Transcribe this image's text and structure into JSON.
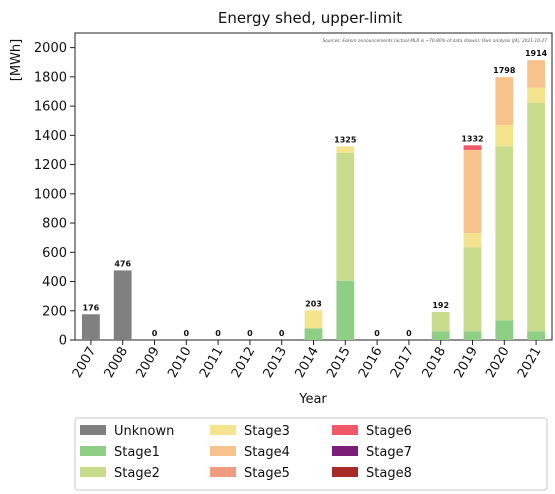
{
  "chart_data": {
    "type": "bar",
    "stacked": true,
    "title": "Energy shed, upper-limit",
    "source_note": "Sources: Eskom announcements (actual MLR is ~70-80% of data shown); Own analysis (JA); 2021-10-27",
    "xlabel": "Year",
    "ylabel": "[MWh]",
    "ylim": [
      0,
      2100
    ],
    "yticks": [
      0,
      200,
      400,
      600,
      800,
      1000,
      1200,
      1400,
      1600,
      1800,
      2000
    ],
    "grid": false,
    "legend_position": "bottom",
    "categories": [
      "2007",
      "2008",
      "2009",
      "2010",
      "2011",
      "2012",
      "2013",
      "2014",
      "2015",
      "2016",
      "2017",
      "2018",
      "2019",
      "2020",
      "2021"
    ],
    "totals": [
      176,
      476,
      0,
      0,
      0,
      0,
      0,
      203,
      1325,
      0,
      0,
      192,
      1332,
      1798,
      1914
    ],
    "series": [
      {
        "name": "Unknown",
        "color": "#808080",
        "values": [
          176,
          476,
          0,
          0,
          0,
          0,
          0,
          0,
          0,
          0,
          0,
          0,
          0,
          0,
          0
        ]
      },
      {
        "name": "Stage1",
        "color": "#8fcf85",
        "values": [
          0,
          0,
          0,
          0,
          0,
          0,
          0,
          80,
          405,
          0,
          0,
          60,
          60,
          135,
          60
        ]
      },
      {
        "name": "Stage2",
        "color": "#c9dc8e",
        "values": [
          0,
          0,
          0,
          0,
          0,
          0,
          0,
          0,
          875,
          0,
          0,
          132,
          575,
          1190,
          1565
        ]
      },
      {
        "name": "Stage3",
        "color": "#f5e48e",
        "values": [
          0,
          0,
          0,
          0,
          0,
          0,
          0,
          123,
          45,
          0,
          0,
          0,
          95,
          145,
          100
        ]
      },
      {
        "name": "Stage4",
        "color": "#f6c38d",
        "values": [
          0,
          0,
          0,
          0,
          0,
          0,
          0,
          0,
          0,
          0,
          0,
          0,
          570,
          328,
          189
        ]
      },
      {
        "name": "Stage5",
        "color": "#ef9c80",
        "values": [
          0,
          0,
          0,
          0,
          0,
          0,
          0,
          0,
          0,
          0,
          0,
          0,
          0,
          0,
          0
        ]
      },
      {
        "name": "Stage6",
        "color": "#f1596a",
        "values": [
          0,
          0,
          0,
          0,
          0,
          0,
          0,
          0,
          0,
          0,
          0,
          0,
          32,
          0,
          0
        ]
      },
      {
        "name": "Stage7",
        "color": "#7b1e7a",
        "values": [
          0,
          0,
          0,
          0,
          0,
          0,
          0,
          0,
          0,
          0,
          0,
          0,
          0,
          0,
          0
        ]
      },
      {
        "name": "Stage8",
        "color": "#a52a2a",
        "values": [
          0,
          0,
          0,
          0,
          0,
          0,
          0,
          0,
          0,
          0,
          0,
          0,
          0,
          0,
          0
        ]
      }
    ]
  }
}
